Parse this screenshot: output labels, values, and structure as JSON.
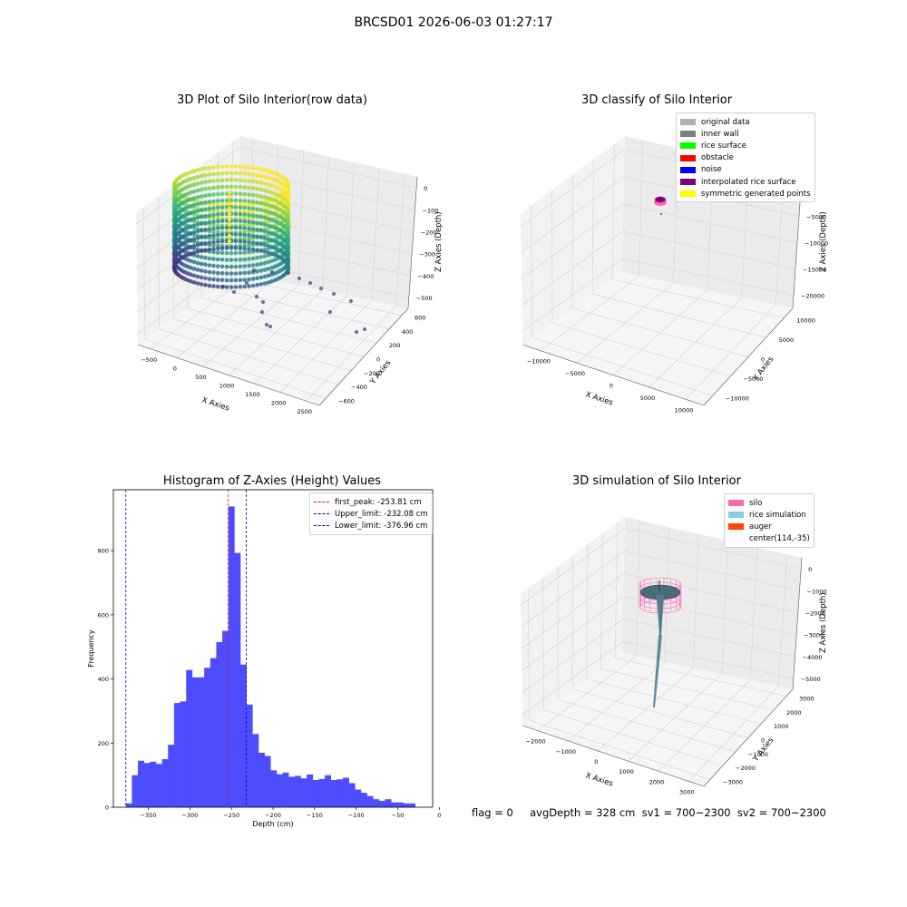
{
  "figure_title": "BRCSD01 2026-06-03 01:27:17",
  "status_line": "flag = 0     avgDepth = 328 cm  sv1 = 700~2300  sv2 = 700~2300",
  "colors": {
    "hist_bar": "#4d4dff",
    "first_peak": "#ff0000",
    "limit_lines": "#0000cc",
    "viridis_low": "#46337e",
    "viridis_mid": "#21918c",
    "viridis_high": "#fde725",
    "silo": "#ff69b4",
    "rice_simulation": "#87ceeb",
    "auger": "#ff4500"
  },
  "chart_data": [
    {
      "type": "scatter",
      "projection": "3d",
      "title": "3D Plot of Silo Interior(row data)",
      "xlabel": "X Axies",
      "ylabel": "Y Axies",
      "zlabel": "Z Axies (Depth)",
      "x_ticks": [
        "−500",
        "0",
        "500",
        "1000",
        "1500",
        "2000",
        "2500"
      ],
      "y_ticks": [
        "−600",
        "−400",
        "−200",
        "0",
        "200",
        "400",
        "600"
      ],
      "z_ticks": [
        "0",
        "−100",
        "−200",
        "−300",
        "−400",
        "−500"
      ],
      "colormap": "viridis"
    },
    {
      "type": "scatter",
      "projection": "3d",
      "title": "3D classify of Silo Interior",
      "xlabel": "X Axies",
      "ylabel": "Y Axies",
      "zlabel": "Z Axies (Depth)",
      "x_ticks": [
        "−10000",
        "−5000",
        "0",
        "5000",
        "10000"
      ],
      "y_ticks": [
        "−10000",
        "−5000",
        "0",
        "5000",
        "10000"
      ],
      "z_ticks": [
        "0",
        "−5000",
        "−10000",
        "−15000",
        "−20000"
      ],
      "legend": [
        {
          "label": "original data",
          "color": "#b0b0b0"
        },
        {
          "label": "inner wall",
          "color": "#808080"
        },
        {
          "label": "rice surface",
          "color": "#00ff00"
        },
        {
          "label": "obstacle",
          "color": "#ff0000"
        },
        {
          "label": "noise",
          "color": "#0000ff"
        },
        {
          "label": "interpolated rice surface",
          "color": "#800080"
        },
        {
          "label": "symmetric generated points",
          "color": "#ffff00"
        }
      ]
    },
    {
      "type": "bar",
      "title": "Histogram of Z-Axies (Height) Values",
      "xlabel": "Depth (cm)",
      "ylabel": "Frequency",
      "xlim": [
        -392,
        -8
      ],
      "ylim": [
        0,
        990
      ],
      "x_ticks": [
        -350,
        -300,
        -250,
        -200,
        -150,
        -100,
        -50,
        0
      ],
      "x_tick_labels": [
        "−350",
        "−300",
        "−250",
        "−200",
        "−150",
        "−100",
        "−50",
        "0"
      ],
      "y_ticks": [
        0,
        200,
        400,
        600,
        800
      ],
      "bin_width": 7.25,
      "bin_start": -377,
      "values": [
        12,
        100,
        145,
        138,
        142,
        135,
        150,
        195,
        325,
        330,
        428,
        405,
        405,
        435,
        465,
        515,
        550,
        938,
        793,
        445,
        320,
        228,
        170,
        160,
        115,
        103,
        108,
        95,
        98,
        90,
        102,
        85,
        88,
        100,
        85,
        87,
        92,
        75,
        55,
        45,
        35,
        25,
        20,
        25,
        15,
        15,
        12,
        12
      ],
      "vlines": [
        {
          "label": "first_peak: -253.81 cm",
          "x": -253.81,
          "color": "#ff0000"
        },
        {
          "label": "Upper_limit: -232.08 cm",
          "x": -232.08,
          "color": "#0000cc"
        },
        {
          "label": "Lower_limit: -376.96 cm",
          "x": -376.96,
          "color": "#0000cc"
        }
      ]
    },
    {
      "type": "scatter",
      "projection": "3d",
      "title": "3D simulation of Silo Interior",
      "xlabel": "X Axies",
      "ylabel": "Y Axies",
      "zlabel": "Z Axies (Depth)",
      "x_ticks": [
        "−2000",
        "−1000",
        "0",
        "1000",
        "2000",
        "3000"
      ],
      "y_ticks": [
        "−3000",
        "−2000",
        "−1000",
        "0",
        "1000",
        "2000",
        "3000"
      ],
      "z_ticks": [
        "0",
        "−1000",
        "−2000",
        "−3000",
        "−4000",
        "−5000"
      ],
      "legend": [
        {
          "label": "silo",
          "color": "#ff69b4"
        },
        {
          "label": "rice simulation",
          "color": "#87ceeb"
        },
        {
          "label": "auger",
          "color": "#ff4500"
        },
        {
          "label": "center(114,-35)",
          "color": ""
        }
      ]
    }
  ]
}
